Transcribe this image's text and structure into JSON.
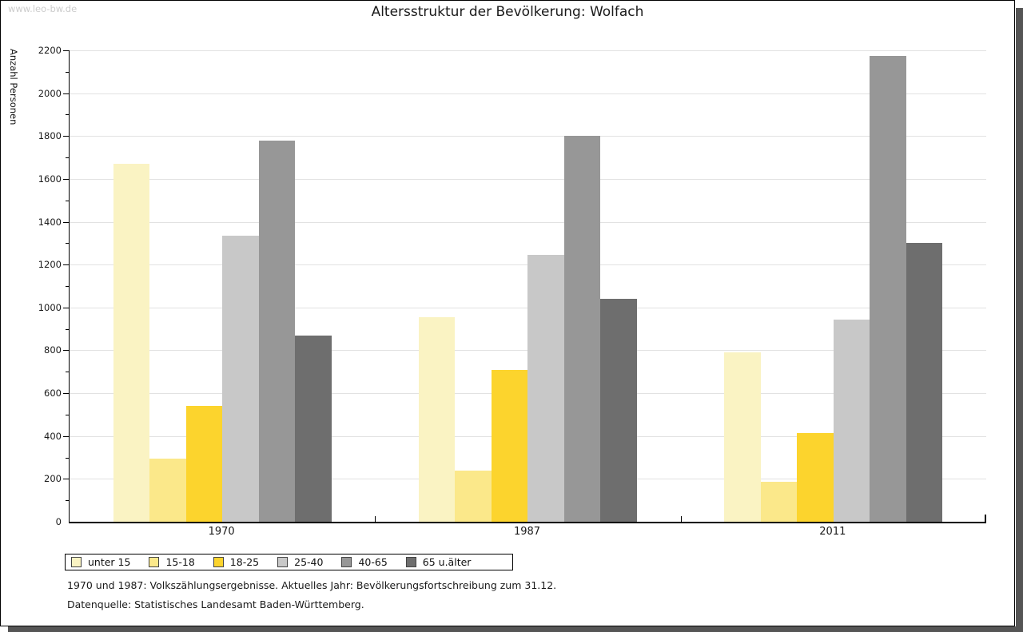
{
  "watermark": "www.leo-bw.de",
  "title": "Altersstruktur der Bevölkerung: Wolfach",
  "y_axis_label": "Anzahl Personen",
  "footer": {
    "line1": "1970 und 1987: Volkszählungsergebnisse. Aktuelles Jahr: Bevölkerungsfortschreibung zum 31.12.",
    "line2": "Datenquelle: Statistisches Landesamt Baden-Württemberg."
  },
  "colors": {
    "grid": "#e2e2e2",
    "axis": "#000000",
    "shadow": "#555555",
    "watermark": "#cccccc"
  },
  "chart_data": {
    "type": "bar",
    "title": "Altersstruktur der Bevölkerung: Wolfach",
    "xlabel": "",
    "ylabel": "Anzahl Personen",
    "categories": [
      "1970",
      "1987",
      "2011"
    ],
    "series": [
      {
        "name": "unter 15",
        "color": "#FAF3C3",
        "values": [
          1670,
          955,
          790
        ]
      },
      {
        "name": "15-18",
        "color": "#FBE88A",
        "values": [
          295,
          240,
          185
        ]
      },
      {
        "name": "18-25",
        "color": "#FCD42D",
        "values": [
          540,
          710,
          415
        ]
      },
      {
        "name": "25-40",
        "color": "#C8C8C8",
        "values": [
          1335,
          1245,
          945
        ]
      },
      {
        "name": "40-65",
        "color": "#979797",
        "values": [
          1780,
          1800,
          2175
        ]
      },
      {
        "name": "65 u.älter",
        "color": "#6E6E6E",
        "values": [
          870,
          1040,
          1300
        ]
      }
    ],
    "ylim": [
      0,
      2200
    ],
    "ytick_step": 200,
    "minor_tick_step": 100,
    "grid": true,
    "legend_position": "bottom-left"
  }
}
